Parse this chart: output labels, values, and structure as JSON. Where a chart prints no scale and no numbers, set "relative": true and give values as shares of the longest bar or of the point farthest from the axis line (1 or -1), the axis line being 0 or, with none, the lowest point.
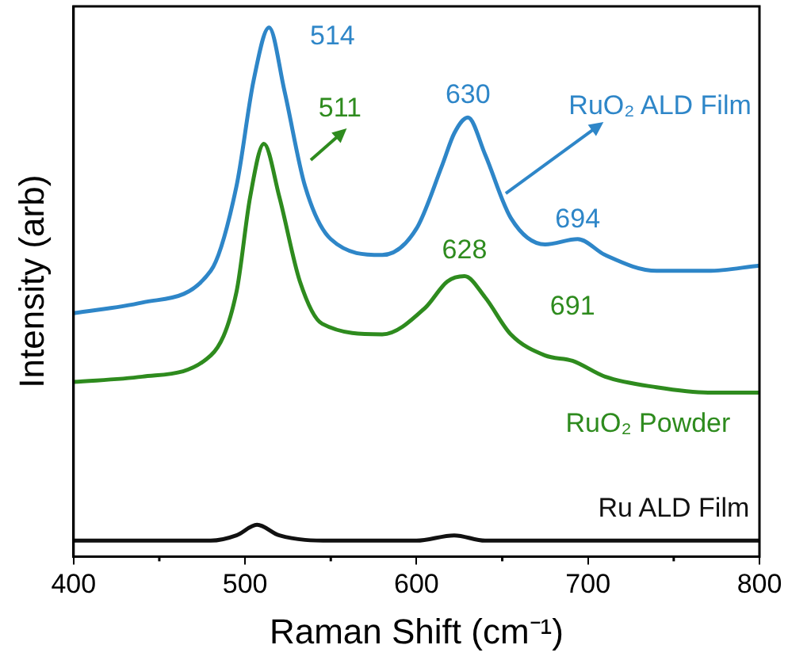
{
  "chart_data": {
    "type": "line",
    "xlabel": "Raman Shift (cm⁻¹)",
    "ylabel": "Intensity (arb)",
    "relative": true,
    "xlim": [
      400,
      800
    ],
    "xticks": [
      400,
      500,
      600,
      700,
      800
    ],
    "grid": false,
    "legend": false,
    "marker": "none",
    "line_style": "solid",
    "series": [
      {
        "name": "RuO₂ ALD Film",
        "color": "#2e86c8",
        "x": [
          400,
          440,
          480,
          495,
          505,
          514,
          523,
          535,
          550,
          580,
          600,
          615,
          622,
          630,
          640,
          655,
          675,
          694,
          710,
          740,
          770,
          800
        ],
        "values": [
          0.46,
          0.48,
          0.54,
          0.7,
          0.9,
          1,
          0.88,
          0.7,
          0.6,
          0.57,
          0.62,
          0.74,
          0.8,
          0.83,
          0.76,
          0.64,
          0.59,
          0.6,
          0.57,
          0.54,
          0.54,
          0.55
        ]
      },
      {
        "name": "RuO₂ Powder",
        "color": "#2e8b1e",
        "x": [
          400,
          440,
          480,
          495,
          503,
          511,
          520,
          532,
          545,
          580,
          605,
          618,
          628,
          640,
          655,
          675,
          691,
          710,
          740,
          770,
          800
        ],
        "values": [
          0.33,
          0.34,
          0.38,
          0.5,
          0.68,
          0.78,
          0.68,
          0.52,
          0.44,
          0.42,
          0.47,
          0.52,
          0.53,
          0.49,
          0.42,
          0.38,
          0.37,
          0.34,
          0.32,
          0.31,
          0.31
        ]
      },
      {
        "name": "Ru ALD Film",
        "color": "#111111",
        "x": [
          400,
          480,
          495,
          507,
          520,
          550,
          600,
          622,
          640,
          700,
          800
        ],
        "values": [
          0.03,
          0.03,
          0.04,
          0.06,
          0.04,
          0.03,
          0.03,
          0.04,
          0.03,
          0.03,
          0.03
        ]
      }
    ],
    "annotations": [
      {
        "text": "514",
        "x": 514,
        "y": 1
      },
      {
        "text": "630",
        "x": 630,
        "y": 0.83
      },
      {
        "text": "694",
        "x": 694,
        "y": 0.6
      },
      {
        "text": "511",
        "x": 511,
        "y": 0.78
      },
      {
        "text": "628",
        "x": 628,
        "y": 0.53
      },
      {
        "text": "691",
        "x": 691,
        "y": 0.37
      }
    ]
  }
}
